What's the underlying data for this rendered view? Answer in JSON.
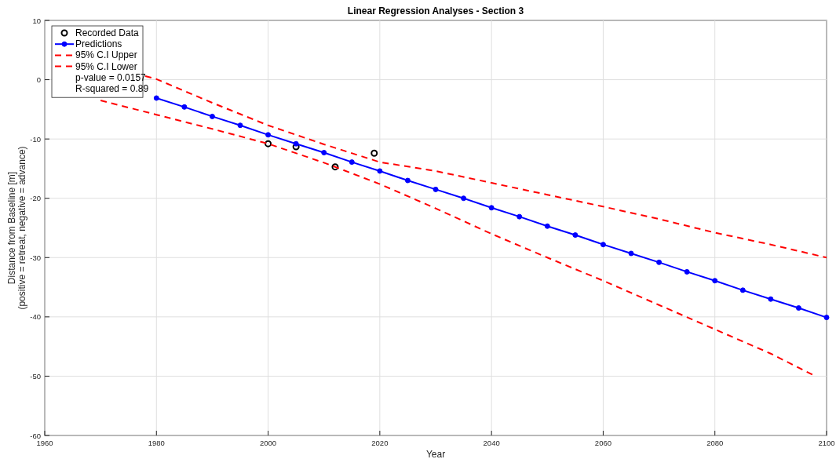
{
  "chart_data": {
    "type": "line",
    "title": "Linear Regression Analyses - Section 3",
    "xlabel": "Year",
    "ylabel": "Distance from Baseline [m]\n(positive = retreat, negative = advance)",
    "xlim": [
      1960,
      2100
    ],
    "xticks": [
      1960,
      1980,
      2000,
      2020,
      2040,
      2060,
      2080,
      2100
    ],
    "ylim": [
      -60,
      10
    ],
    "yticks": [
      -60,
      -50,
      -40,
      -30,
      -20,
      -10,
      0,
      10
    ],
    "grid": true,
    "legend": "top left",
    "annotations": [
      "p-value  = 0.0157",
      "R-squared = 0.89"
    ],
    "series": [
      {
        "name": "Recorded Data",
        "type": "scatter",
        "color": "#000000",
        "marker": "circle",
        "x": [
          2000,
          2005,
          2012,
          2019
        ],
        "values": [
          -10.8,
          -11.3,
          -14.7,
          -12.4
        ]
      },
      {
        "name": "Predictions",
        "color": "#0000ff",
        "marker": "circle",
        "line_style": "solid",
        "x": [
          1980,
          1985,
          1990,
          1995,
          2000,
          2005,
          2010,
          2015,
          2020,
          2025,
          2030,
          2035,
          2040,
          2045,
          2050,
          2055,
          2060,
          2065,
          2070,
          2075,
          2080,
          2085,
          2090,
          2095,
          2100
        ],
        "values": [
          -3.1,
          -4.6,
          -6.2,
          -7.7,
          -9.3,
          -10.8,
          -12.3,
          -13.9,
          -15.4,
          -17.0,
          -18.5,
          -20.0,
          -21.6,
          -23.1,
          -24.7,
          -26.2,
          -27.8,
          -29.3,
          -30.8,
          -32.4,
          -33.9,
          -35.5,
          -37.0,
          -38.5,
          -40.1
        ]
      },
      {
        "name": "95% C.I Upper",
        "color": "#ff0000",
        "marker": "none",
        "line_style": "dashed",
        "x": [
          1978,
          1980,
          1990,
          2000,
          2010,
          2020,
          2030,
          2040,
          2050,
          2060,
          2070,
          2080,
          2090,
          2100
        ],
        "values": [
          0.6,
          0.1,
          -3.9,
          -7.7,
          -10.9,
          -13.9,
          -15.4,
          -17.4,
          -19.4,
          -21.4,
          -23.5,
          -25.8,
          -27.8,
          -30.0
        ]
      },
      {
        "name": "95% C.I Lower",
        "color": "#ff0000",
        "marker": "none",
        "line_style": "dashed",
        "x": [
          1970,
          1980,
          1990,
          2000,
          2010,
          2020,
          2030,
          2040,
          2050,
          2060,
          2070,
          2080,
          2090,
          2098
        ],
        "values": [
          -3.5,
          -5.9,
          -8.3,
          -10.8,
          -14.0,
          -17.6,
          -21.7,
          -26.0,
          -30.0,
          -33.9,
          -38.0,
          -42.1,
          -46.2,
          -50.0
        ]
      }
    ]
  }
}
